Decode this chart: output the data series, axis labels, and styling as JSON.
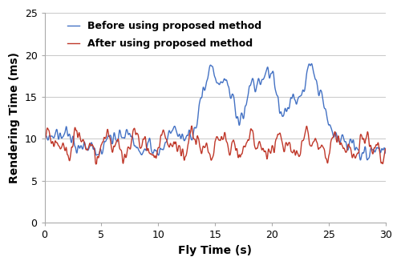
{
  "title": "",
  "xlabel": "Fly Time (s)",
  "ylabel": "Rendering Time (ms)",
  "xlim": [
    0,
    30
  ],
  "ylim": [
    0,
    25
  ],
  "xticks": [
    0,
    5,
    10,
    15,
    20,
    25,
    30
  ],
  "yticks": [
    0,
    5,
    10,
    15,
    20,
    25
  ],
  "blue_label": "Before using proposed method",
  "red_label": "After using proposed method",
  "blue_color": "#4472C4",
  "red_color": "#C0392B",
  "linewidth": 1.0,
  "legend_loc": "upper left",
  "grid_color": "#C8C8C8",
  "background_color": "#FFFFFF"
}
